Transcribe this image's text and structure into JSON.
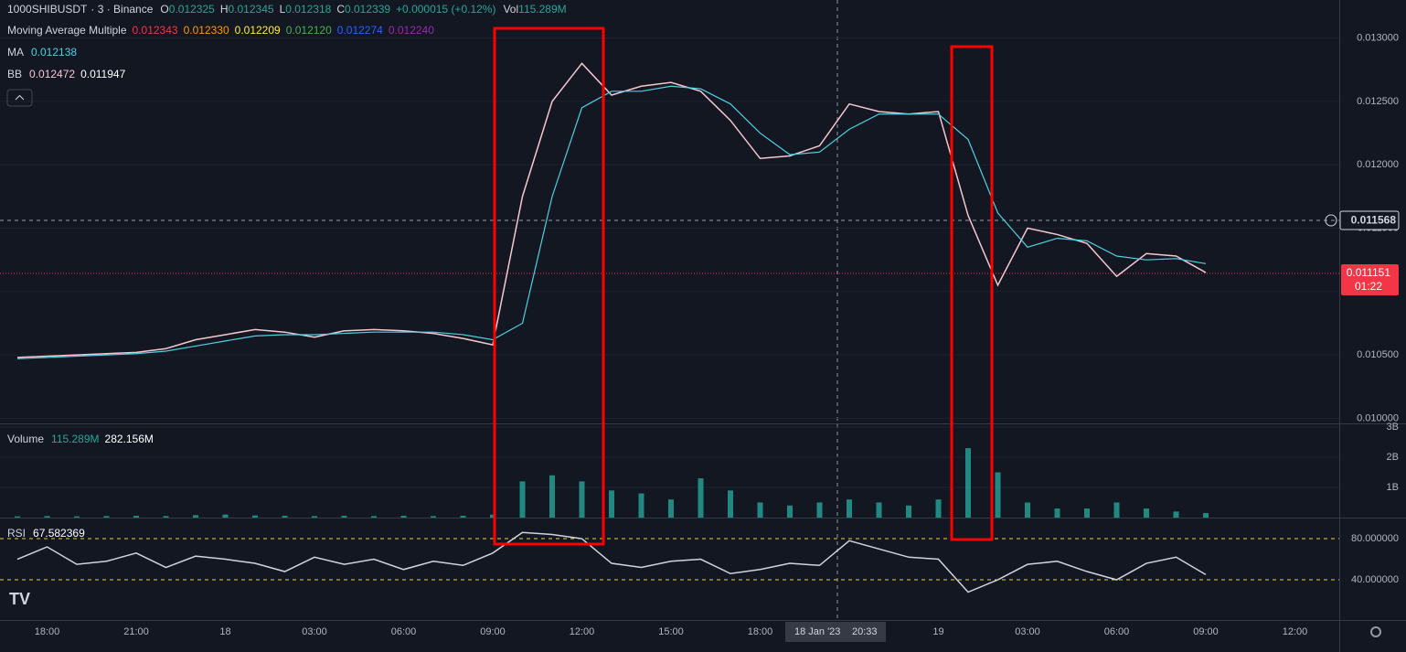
{
  "chart_data": [
    {
      "type": "line",
      "categories": [
        null,
        "18:00",
        null,
        null,
        "21:00",
        null,
        null,
        "18",
        null,
        null,
        "03:00",
        null,
        null,
        "06:00",
        null,
        null,
        "09:00",
        null,
        null,
        "12:00",
        null,
        null,
        "15:00",
        null,
        null,
        "18:00",
        null,
        null,
        null,
        null,
        null,
        "19",
        null,
        null,
        "03:00",
        null,
        null,
        "06:00",
        null,
        null,
        "09:00",
        null,
        null,
        "12:00"
      ],
      "series": [
        {
          "name": "1000SHIBUSDT",
          "color": "#f7c6cf",
          "values": [
            0.01048,
            0.01049,
            0.0105,
            0.01051,
            0.01052,
            0.01055,
            0.01062,
            0.01066,
            0.0107,
            0.01068,
            0.01064,
            0.01069,
            0.0107,
            0.01069,
            0.01067,
            0.01063,
            0.01058,
            0.01175,
            0.0125,
            0.0128,
            0.01255,
            0.01262,
            0.01265,
            0.01258,
            0.01235,
            0.01205,
            0.01207,
            0.01215,
            0.01248,
            0.01242,
            0.0124,
            0.01242,
            0.0116,
            0.01105,
            0.0115,
            0.01145,
            0.01138,
            0.01112,
            0.0113,
            0.01128,
            0.01115,
            null,
            null,
            null
          ]
        },
        {
          "name": "MA",
          "color": "#4dd0e1",
          "values": [
            0.01047,
            0.01048,
            0.01049,
            0.0105,
            0.01051,
            0.01053,
            0.01057,
            0.01061,
            0.01065,
            0.01066,
            0.01066,
            0.01067,
            0.01068,
            0.01068,
            0.01068,
            0.01066,
            0.01062,
            0.01075,
            0.01175,
            0.01245,
            0.01258,
            0.01258,
            0.01262,
            0.0126,
            0.01248,
            0.01225,
            0.01208,
            0.0121,
            0.01228,
            0.0124,
            0.0124,
            0.0124,
            0.0122,
            0.01162,
            0.01135,
            0.01142,
            0.0114,
            0.01128,
            0.01125,
            0.01126,
            0.01122,
            null,
            null,
            null
          ]
        }
      ],
      "ylim": [
        0.00996,
        0.0133
      ],
      "yticks": [
        {
          "value": 0.01,
          "label": "0.010000"
        },
        {
          "value": 0.0105,
          "label": "0.010500"
        },
        {
          "value": 0.011,
          "label": "0.011000"
        },
        {
          "value": 0.0115,
          "label": "0.011500"
        },
        {
          "value": 0.012,
          "label": "0.012000"
        },
        {
          "value": 0.0125,
          "label": "0.012500"
        },
        {
          "value": 0.013,
          "label": "0.013000"
        }
      ]
    },
    {
      "type": "bar",
      "series": [
        {
          "name": "Volume",
          "color": "#26a69a",
          "values": [
            0.04,
            0.05,
            0.04,
            0.05,
            0.06,
            0.05,
            0.08,
            0.1,
            0.07,
            0.06,
            0.05,
            0.06,
            0.05,
            0.06,
            0.05,
            0.06,
            0.1,
            1.2,
            1.4,
            1.2,
            0.9,
            0.8,
            0.6,
            1.3,
            0.9,
            0.5,
            0.4,
            0.5,
            0.6,
            0.5,
            0.4,
            0.6,
            2.3,
            1.5,
            0.5,
            0.3,
            0.3,
            0.5,
            0.3,
            0.2,
            0.15,
            null,
            null,
            null
          ]
        }
      ],
      "ylim": [
        0,
        3
      ],
      "yticks": [
        {
          "value": 1,
          "label": "1B"
        },
        {
          "value": 2,
          "label": "2B"
        },
        {
          "value": 3,
          "label": "3B"
        }
      ]
    },
    {
      "type": "line",
      "series": [
        {
          "name": "RSI",
          "color": "#d1d4dc",
          "values": [
            60,
            72,
            55,
            58,
            66,
            52,
            63,
            60,
            56,
            48,
            62,
            55,
            60,
            50,
            58,
            54,
            66,
            86,
            84,
            80,
            56,
            52,
            58,
            60,
            46,
            50,
            56,
            54,
            78,
            70,
            62,
            60,
            28,
            40,
            55,
            58,
            48,
            40,
            56,
            62,
            45,
            null,
            null,
            null
          ]
        }
      ],
      "ylim": [
        0.9,
        99.6
      ],
      "yticks": [
        {
          "value": 40,
          "label": "40.000000"
        },
        {
          "value": 80,
          "label": "80.000000"
        }
      ]
    }
  ],
  "header": {
    "interval": "· 3 · Binance",
    "ohlc": [
      {
        "key": "O",
        "value": "0.012325"
      },
      {
        "key": "H",
        "value": "0.012345"
      },
      {
        "key": "L",
        "value": "0.012318"
      },
      {
        "key": "C",
        "value": "0.012339"
      }
    ],
    "change": "+0.000015 (+0.12%)",
    "vol_key": "Vol",
    "vol_value": "115.289M"
  },
  "mam": {
    "title": "Moving Average Multiple",
    "values": [
      {
        "text": "0.012343",
        "color": "#f23645"
      },
      {
        "text": "0.012330",
        "color": "#ff9800"
      },
      {
        "text": "0.012209",
        "color": "#ffeb3b"
      },
      {
        "text": "0.012120",
        "color": "#4caf50"
      },
      {
        "text": "0.012274",
        "color": "#2962ff"
      },
      {
        "text": "0.012240",
        "color": "#9c27b0"
      }
    ]
  },
  "ma_value": "0.012138",
  "bb": {
    "title": "BB",
    "values": [
      "0.012472",
      "0.011947"
    ]
  },
  "volume_values": [
    "115.289M",
    "282.156M"
  ],
  "rsi_value": "67.582369",
  "crosshair": {
    "price": "0.011568",
    "date": "18 Jan '23",
    "time": "20:33"
  },
  "last_price": {
    "price": "0.011151",
    "countdown": "01:22"
  }
}
